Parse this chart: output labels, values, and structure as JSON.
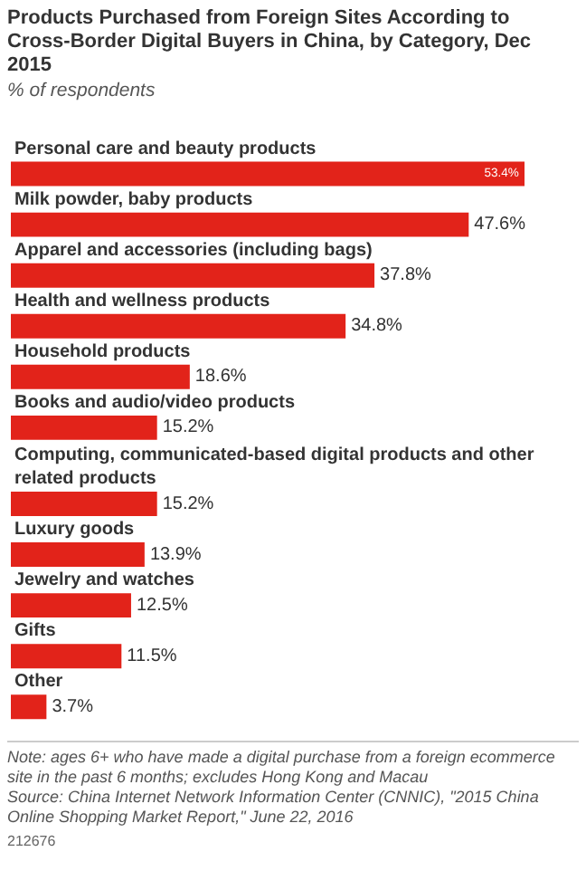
{
  "chart_data": {
    "type": "bar",
    "orientation": "horizontal",
    "title": "Products Purchased from Foreign Sites According to Cross-Border Digital Buyers in China, by Category, Dec 2015",
    "subtitle": "% of respondents",
    "categories": [
      "Personal care and beauty products",
      "Milk powder, baby products",
      "Apparel and accessories (including bags)",
      "Health and wellness products",
      "Household products",
      "Books and audio/video products",
      "Computing, communicated-based digital products and other related products",
      "Luxury goods",
      "Jewelry and watches",
      "Gifts",
      "Other"
    ],
    "values": [
      53.4,
      47.6,
      37.8,
      34.8,
      18.6,
      15.2,
      15.2,
      13.9,
      12.5,
      11.5,
      3.7
    ],
    "value_labels": [
      "53.4%",
      "47.6%",
      "37.8%",
      "34.8%",
      "18.6%",
      "15.2%",
      "15.2%",
      "13.9%",
      "12.5%",
      "11.5%",
      "3.7%"
    ],
    "color": "#e2231a",
    "legend": false,
    "annotations": [
      "Note: ages 6+ who have made a digital purchase from a foreign ecommerce site in the past 6 months; excludes Hong Kong and Macau",
      "Source: China Internet Network Information Center (CNNIC), \"2015 China Online Shopping Market Report,\" June 22, 2016",
      "212676"
    ]
  }
}
